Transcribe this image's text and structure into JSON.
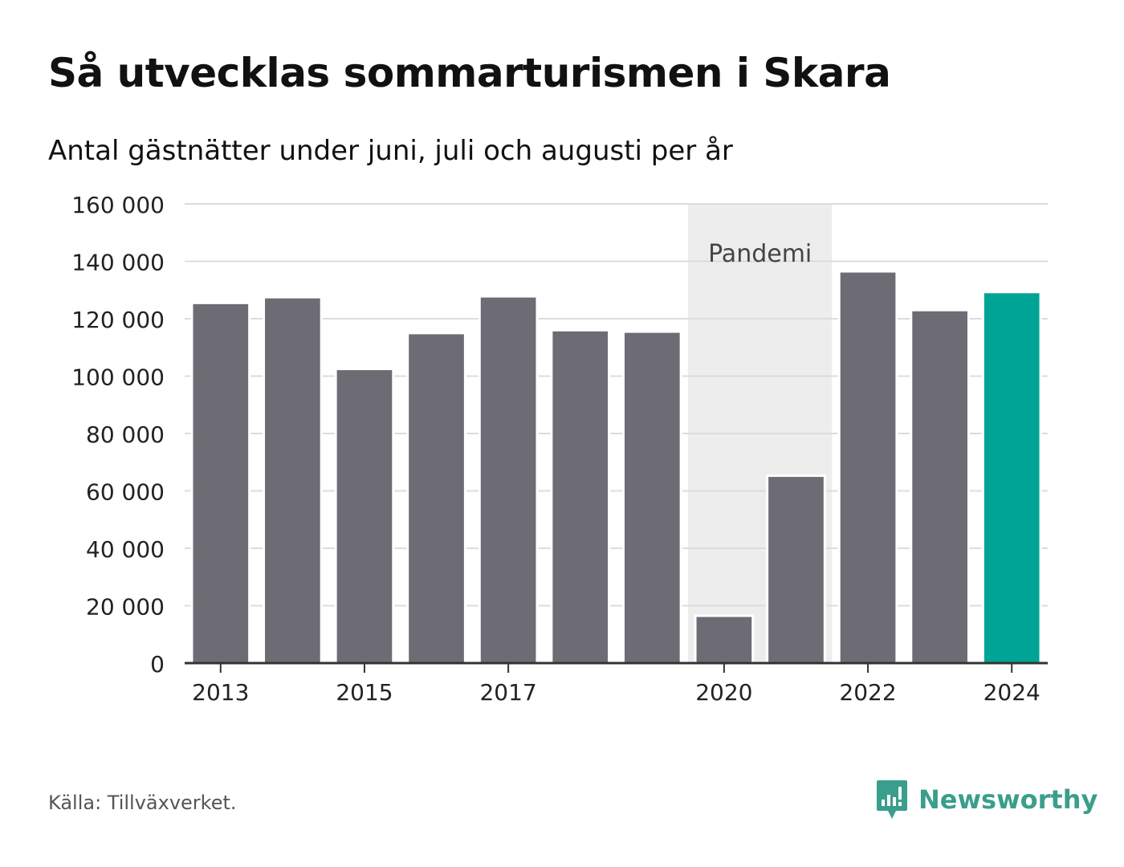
{
  "title": "Så utvecklas sommarturismen i Skara",
  "subtitle": "Antal gästnätter under juni, juli och augusti per år",
  "source": "Källa: Tillväxverket.",
  "brand": {
    "name": "Newsworthy",
    "icon": "bar-chart-speech-bubble-icon",
    "color": "#3a9e8c"
  },
  "colors": {
    "bar": "#6d6c74",
    "highlight": "#00a496",
    "band": "#ededed",
    "grid": "#dcdcdc",
    "axis": "#333333"
  },
  "chart_data": {
    "type": "bar",
    "title": "Så utvecklas sommarturismen i Skara",
    "subtitle": "Antal gästnätter under juni, juli och augusti per år",
    "xlabel": "",
    "ylabel": "",
    "categories": [
      "2013",
      "2014",
      "2015",
      "2016",
      "2017",
      "2018",
      "2019",
      "2020",
      "2021",
      "2022",
      "2023",
      "2024"
    ],
    "values": [
      125500,
      127500,
      102500,
      115000,
      127800,
      116000,
      115500,
      16500,
      65300,
      136500,
      123000,
      129300
    ],
    "highlight_category": "2024",
    "ylim": [
      0,
      160000
    ],
    "yticks": [
      0,
      20000,
      40000,
      60000,
      80000,
      100000,
      120000,
      140000,
      160000
    ],
    "ytick_labels": [
      "0",
      "20 000",
      "40 000",
      "60 000",
      "80 000",
      "100 000",
      "120 000",
      "140 000",
      "160 000"
    ],
    "xtick_labels": [
      "2013",
      "2015",
      "2017",
      "2020",
      "2022",
      "2024"
    ],
    "grid": true,
    "annotation": {
      "label": "Pandemi",
      "from": "2020",
      "to": "2021"
    }
  }
}
